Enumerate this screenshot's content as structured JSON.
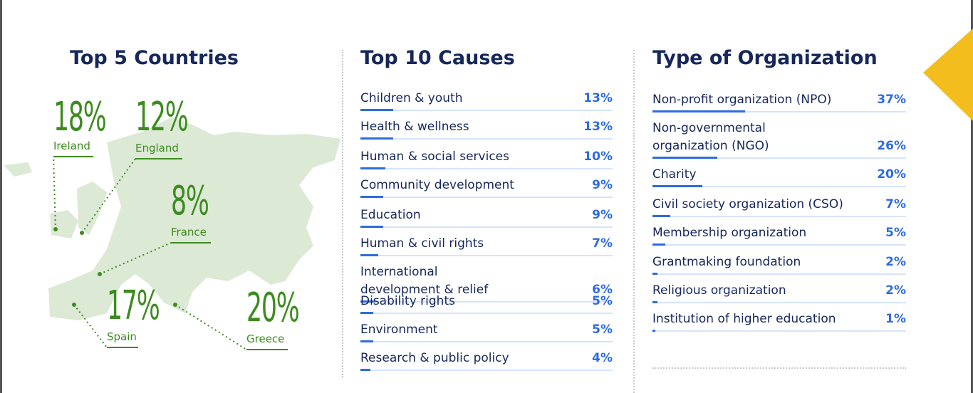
{
  "countries": {
    "title": "Top 5 Countries",
    "items": [
      {
        "name": "Ireland",
        "value": 18,
        "value_label": "18%"
      },
      {
        "name": "England",
        "value": 12,
        "value_label": "12%"
      },
      {
        "name": "France",
        "value": 8,
        "value_label": "8%"
      },
      {
        "name": "Spain",
        "value": 17,
        "value_label": "17%"
      },
      {
        "name": "Greece",
        "value": 20,
        "value_label": "20%"
      }
    ]
  },
  "causes": {
    "title": "Top 10 Causes",
    "items": [
      {
        "name": "Children & youth",
        "value": 13,
        "value_label": "13%"
      },
      {
        "name": "Health & wellness",
        "value": 13,
        "value_label": "13%"
      },
      {
        "name": "Human & social services",
        "value": 10,
        "value_label": "10%"
      },
      {
        "name": "Community development",
        "value": 9,
        "value_label": "9%"
      },
      {
        "name": "Education",
        "value": 9,
        "value_label": "9%"
      },
      {
        "name": "Human & civil rights",
        "value": 7,
        "value_label": "7%"
      },
      {
        "name": "International development & relief",
        "value": 6,
        "value_label": "6%"
      },
      {
        "name": "Disability rights",
        "value": 5,
        "value_label": "5%"
      },
      {
        "name": "Environment",
        "value": 5,
        "value_label": "5%"
      },
      {
        "name": "Research & public policy",
        "value": 4,
        "value_label": "4%"
      }
    ]
  },
  "organizations": {
    "title": "Type of Organization",
    "items": [
      {
        "name": "Non-profit organization (NPO)",
        "value": 37,
        "value_label": "37%"
      },
      {
        "name": "Non-governmental organization (NGO)",
        "value": 26,
        "value_label": "26%"
      },
      {
        "name": "Charity",
        "value": 20,
        "value_label": "20%"
      },
      {
        "name": "Civil society organization (CSO)",
        "value": 7,
        "value_label": "7%"
      },
      {
        "name": "Membership organization",
        "value": 5,
        "value_label": "5%"
      },
      {
        "name": "Grantmaking foundation",
        "value": 2,
        "value_label": "2%"
      },
      {
        "name": "Religious organization",
        "value": 2,
        "value_label": "2%"
      },
      {
        "name": "Institution of higher education",
        "value": 1,
        "value_label": "1%"
      }
    ]
  }
}
